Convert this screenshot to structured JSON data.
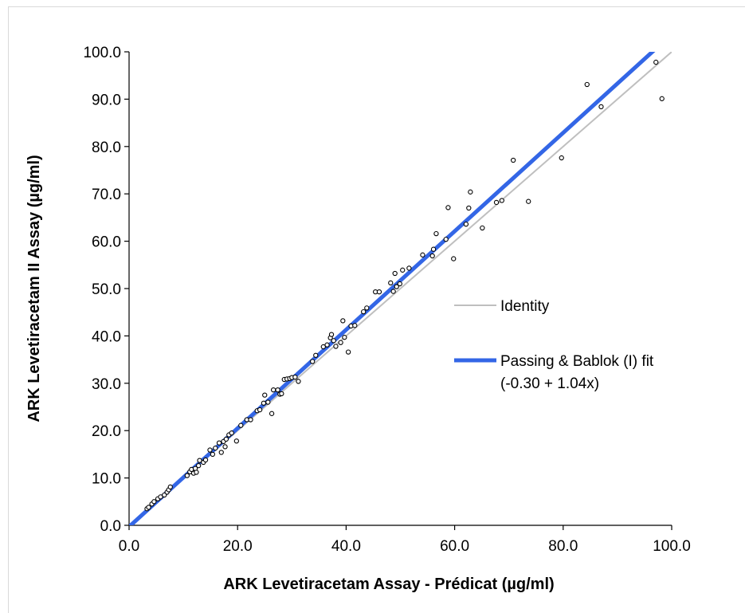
{
  "chart_data": {
    "type": "scatter",
    "xlabel": "ARK Levetiracetam Assay - Prédicat (µg/ml)",
    "ylabel": "ARK Levetiracetam II Assay (µg/ml)",
    "xlim": [
      0,
      100
    ],
    "ylim": [
      0,
      100
    ],
    "xticks": [
      "0.0",
      "20.0",
      "40.0",
      "60.0",
      "80.0",
      "100.0"
    ],
    "yticks": [
      "0.0",
      "10.0",
      "20.0",
      "30.0",
      "40.0",
      "50.0",
      "60.0",
      "70.0",
      "80.0",
      "90.0",
      "100.0"
    ],
    "grid": false,
    "legend_position": "right",
    "colors": {
      "identity": "#bfbfbf",
      "fit": "#3366e6",
      "points": "#000000"
    },
    "lines": [
      {
        "name": "Identity",
        "label_lines": [
          "Identity"
        ],
        "intercept": 0,
        "slope": 1
      },
      {
        "name": "Passing & Bablok (I) fit",
        "label_lines": [
          "Passing & Bablok (I) fit",
          "(-0.30 + 1.04x)"
        ],
        "intercept": -0.3,
        "slope": 1.04
      }
    ],
    "points": [
      [
        3.3,
        3.5
      ],
      [
        3.6,
        3.8
      ],
      [
        4.2,
        4.5
      ],
      [
        4.6,
        5.0
      ],
      [
        5.3,
        5.6
      ],
      [
        5.8,
        6.0
      ],
      [
        6.5,
        6.4
      ],
      [
        7.0,
        7.0
      ],
      [
        7.3,
        7.5
      ],
      [
        7.6,
        8.1
      ],
      [
        10.7,
        10.5
      ],
      [
        11.2,
        11.3
      ],
      [
        11.5,
        11.8
      ],
      [
        11.9,
        11.0
      ],
      [
        12.2,
        12.0
      ],
      [
        12.4,
        11.2
      ],
      [
        12.8,
        12.6
      ],
      [
        13.0,
        13.7
      ],
      [
        13.7,
        13.3
      ],
      [
        14.1,
        13.8
      ],
      [
        14.9,
        15.9
      ],
      [
        15.4,
        15.0
      ],
      [
        15.9,
        16.3
      ],
      [
        16.6,
        17.4
      ],
      [
        17.0,
        15.4
      ],
      [
        17.4,
        17.7
      ],
      [
        17.7,
        16.6
      ],
      [
        17.9,
        18.2
      ],
      [
        18.4,
        19.1
      ],
      [
        18.9,
        19.5
      ],
      [
        19.8,
        17.8
      ],
      [
        20.6,
        21.1
      ],
      [
        21.7,
        22.3
      ],
      [
        22.4,
        22.3
      ],
      [
        23.6,
        24.2
      ],
      [
        24.1,
        24.4
      ],
      [
        24.8,
        25.8
      ],
      [
        25.0,
        27.5
      ],
      [
        25.6,
        26.0
      ],
      [
        26.3,
        23.6
      ],
      [
        26.6,
        28.6
      ],
      [
        27.4,
        28.6
      ],
      [
        27.8,
        27.7
      ],
      [
        28.1,
        27.8
      ],
      [
        28.6,
        30.8
      ],
      [
        29.1,
        30.9
      ],
      [
        29.6,
        31.0
      ],
      [
        30.0,
        31.2
      ],
      [
        30.6,
        31.3
      ],
      [
        31.2,
        30.4
      ],
      [
        33.8,
        34.6
      ],
      [
        34.4,
        35.9
      ],
      [
        35.8,
        37.7
      ],
      [
        36.5,
        38.1
      ],
      [
        37.1,
        39.6
      ],
      [
        37.3,
        40.3
      ],
      [
        37.7,
        39.0
      ],
      [
        38.1,
        37.8
      ],
      [
        39.0,
        38.6
      ],
      [
        39.4,
        43.2
      ],
      [
        39.7,
        39.7
      ],
      [
        40.4,
        36.6
      ],
      [
        40.9,
        42.1
      ],
      [
        41.6,
        42.2
      ],
      [
        43.2,
        45.1
      ],
      [
        43.8,
        45.9
      ],
      [
        45.4,
        49.3
      ],
      [
        46.1,
        49.3
      ],
      [
        48.2,
        51.2
      ],
      [
        48.7,
        49.4
      ],
      [
        49.0,
        53.2
      ],
      [
        49.3,
        50.4
      ],
      [
        49.9,
        51.0
      ],
      [
        50.4,
        53.9
      ],
      [
        51.6,
        54.3
      ],
      [
        54.1,
        57.1
      ],
      [
        55.9,
        56.9
      ],
      [
        56.1,
        58.3
      ],
      [
        56.6,
        61.6
      ],
      [
        58.4,
        60.4
      ],
      [
        58.8,
        67.1
      ],
      [
        59.8,
        56.3
      ],
      [
        62.1,
        63.6
      ],
      [
        62.6,
        67.0
      ],
      [
        62.9,
        70.4
      ],
      [
        65.1,
        62.8
      ],
      [
        67.7,
        68.2
      ],
      [
        68.7,
        68.6
      ],
      [
        70.8,
        77.1
      ],
      [
        73.6,
        68.4
      ],
      [
        79.7,
        77.6
      ],
      [
        84.4,
        93.1
      ],
      [
        87.0,
        88.4
      ],
      [
        97.1,
        97.8
      ],
      [
        98.2,
        90.1
      ]
    ]
  }
}
